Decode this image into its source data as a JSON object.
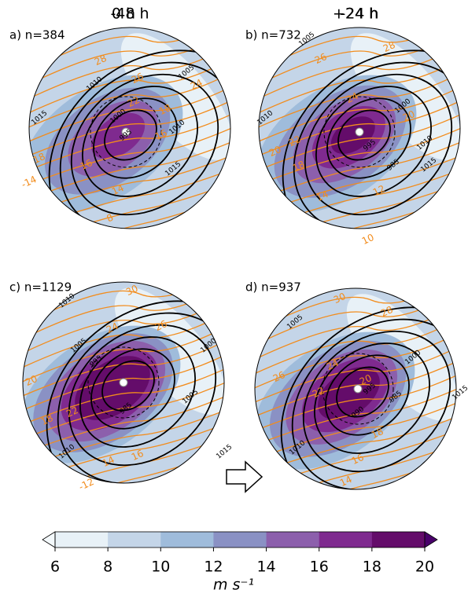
{
  "panels": [
    {
      "title": "-48 h",
      "label": "a) n=384",
      "isobar_labels": [
        1005,
        1010,
        1015,
        1000,
        995,
        1010,
        1015
      ],
      "isotach_labels": [
        28,
        26,
        24,
        22,
        18,
        16,
        18,
        16,
        14,
        -14,
        8
      ]
    },
    {
      "title": "-24 h",
      "label": "b) n=732",
      "isobar_labels": [
        1005,
        1000,
        1010,
        995,
        1010,
        1015,
        985
      ],
      "isotach_labels": [
        28,
        26,
        24,
        20,
        22,
        18,
        14,
        12,
        10,
        20
      ]
    },
    {
      "title": "0 h",
      "label": "c) n=1129",
      "isobar_labels": [
        1010,
        1005,
        1000,
        1005,
        1015,
        1010,
        985,
        995
      ],
      "isotach_labels": [
        30,
        26,
        24,
        22,
        18,
        16,
        14,
        -12,
        20
      ]
    },
    {
      "title": "+24 h",
      "label": "d) n=937",
      "isobar_labels": [
        1005,
        1000,
        995,
        990,
        1010,
        1015,
        985
      ],
      "isotach_labels": [
        30,
        28,
        24,
        22,
        20,
        26,
        18,
        16,
        14
      ]
    }
  ],
  "colorbar": {
    "levels": [
      6,
      8,
      10,
      12,
      14,
      16,
      18,
      20
    ],
    "colors": [
      "#e8f1f7",
      "#c4d5e8",
      "#9fbcdb",
      "#8a91c4",
      "#8c5fac",
      "#7f2a8f",
      "#640c6a"
    ],
    "under_color": "#f4f9fc",
    "over_color": "#49006a",
    "ticks": [
      6,
      8,
      10,
      12,
      14,
      16,
      18,
      20
    ],
    "label": "m s⁻¹"
  }
}
